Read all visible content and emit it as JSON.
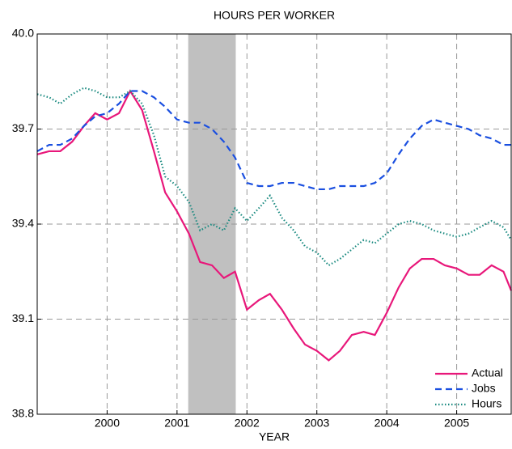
{
  "chart_data": {
    "type": "line",
    "title": "HOURS PER WORKER",
    "x_label": "YEAR",
    "x": [
      1999,
      1999.17,
      1999.33,
      1999.5,
      1999.67,
      1999.83,
      2000,
      2000.17,
      2000.33,
      2000.5,
      2000.67,
      2000.83,
      2001,
      2001.17,
      2001.33,
      2001.5,
      2001.67,
      2001.83,
      2002,
      2002.17,
      2002.33,
      2002.5,
      2002.67,
      2002.83,
      2003,
      2003.17,
      2003.33,
      2003.5,
      2003.67,
      2003.83,
      2004,
      2004.17,
      2004.33,
      2004.5,
      2004.67,
      2004.83,
      2005,
      2005.17,
      2005.33,
      2005.5,
      2005.67,
      2005.78
    ],
    "series": [
      {
        "name": "Actual",
        "color": "#e8177a",
        "dash": "solid",
        "values": [
          39.62,
          39.63,
          39.63,
          39.66,
          39.71,
          39.75,
          39.73,
          39.75,
          39.82,
          39.76,
          39.63,
          39.5,
          39.44,
          39.37,
          39.28,
          39.27,
          39.23,
          39.25,
          39.13,
          39.16,
          39.18,
          39.13,
          39.07,
          39.02,
          39.0,
          38.97,
          39.0,
          39.05,
          39.06,
          39.05,
          39.12,
          39.2,
          39.26,
          39.29,
          39.29,
          39.27,
          39.26,
          39.24,
          39.24,
          39.27,
          39.25,
          39.19
        ]
      },
      {
        "name": "Jobs",
        "color": "#1a4fe0",
        "dash": "dashed",
        "values": [
          39.63,
          39.65,
          39.65,
          39.67,
          39.71,
          39.74,
          39.75,
          39.78,
          39.82,
          39.82,
          39.8,
          39.77,
          39.73,
          39.72,
          39.72,
          39.7,
          39.66,
          39.61,
          39.53,
          39.52,
          39.52,
          39.53,
          39.53,
          39.52,
          39.51,
          39.51,
          39.52,
          39.52,
          39.52,
          39.53,
          39.56,
          39.62,
          39.67,
          39.71,
          39.73,
          39.72,
          39.71,
          39.7,
          39.68,
          39.67,
          39.65,
          39.65
        ]
      },
      {
        "name": "Hours",
        "color": "#1a8a80",
        "dash": "dotted",
        "values": [
          39.81,
          39.8,
          39.78,
          39.81,
          39.83,
          39.82,
          39.8,
          39.8,
          39.82,
          39.78,
          39.68,
          39.55,
          39.52,
          39.47,
          39.38,
          39.4,
          39.38,
          39.45,
          39.41,
          39.45,
          39.49,
          39.42,
          39.38,
          39.33,
          39.31,
          39.27,
          39.29,
          39.32,
          39.35,
          39.34,
          39.37,
          39.4,
          39.41,
          39.4,
          39.38,
          39.37,
          39.36,
          39.37,
          39.39,
          39.41,
          39.39,
          39.35
        ]
      }
    ],
    "recession": [
      2001.16,
      2001.84
    ],
    "xlim": [
      1999,
      2005.78
    ],
    "xticks": [
      2000,
      2001,
      2002,
      2003,
      2004,
      2005
    ],
    "ylim": [
      38.8,
      40.0
    ],
    "yticks": [
      38.8,
      39.1,
      39.4,
      39.7,
      {
        "value": 40.0,
        "label": "40.0"
      }
    ],
    "grid": true,
    "legend": "lower right"
  }
}
